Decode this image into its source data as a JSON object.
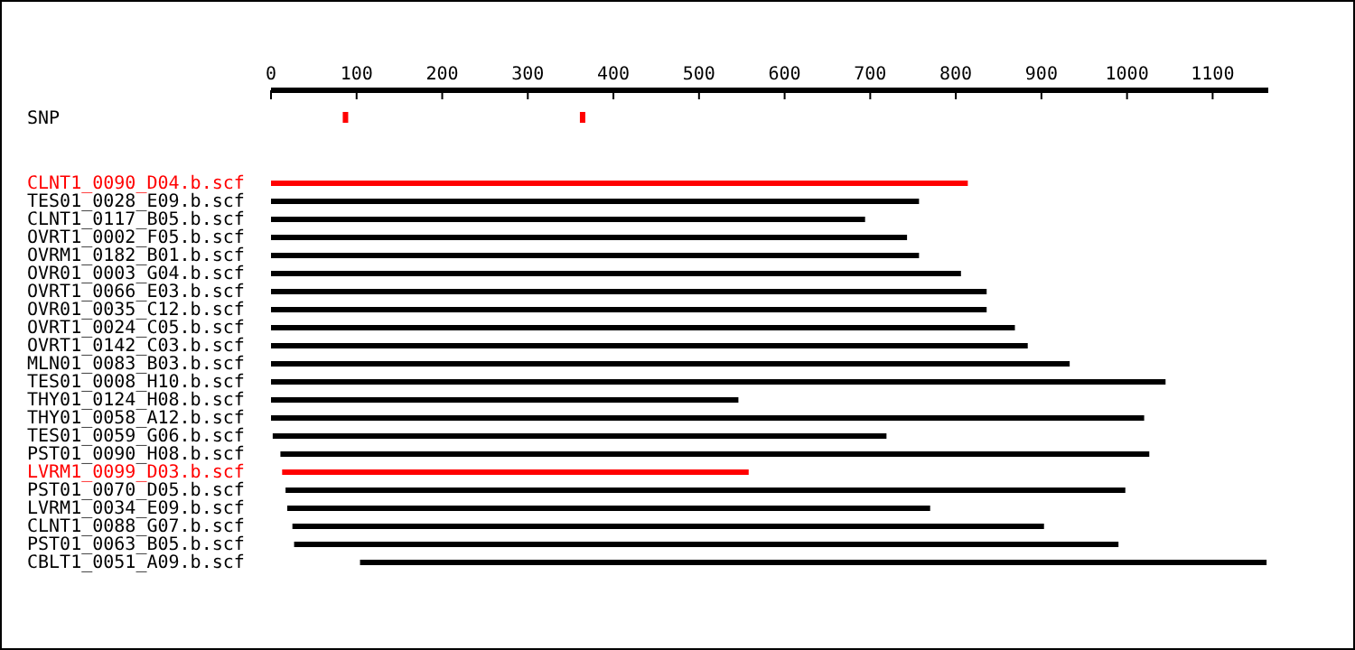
{
  "chart_data": {
    "type": "bar",
    "orientation": "horizontal",
    "categories": [
      "SNP",
      "CLNT1_0090_D04.b.scf",
      "TES01_0028_E09.b.scf",
      "CLNT1_0117_B05.b.scf",
      "OVRT1_0002_F05.b.scf",
      "OVRM1_0182_B01.b.scf",
      "OVR01_0003_G04.b.scf",
      "OVRT1_0066_E03.b.scf",
      "OVR01_0035_C12.b.scf",
      "OVRT1_0024_C05.b.scf",
      "OVRT1_0142_C03.b.scf",
      "MLN01_0083_B03.b.scf",
      "TES01_0008_H10.b.scf",
      "THY01_0124_H08.b.scf",
      "THY01_0058_A12.b.scf",
      "TES01_0059_G06.b.scf",
      "PST01_0090_H08.b.scf",
      "LVRM1_0099_D03.b.scf",
      "PST01_0070_D05.b.scf",
      "LVRM1_0034_E09.b.scf",
      "CLNT1_0088_G07.b.scf",
      "PST01_0063_B05.b.scf",
      "CBLT1_0051_A09.b.scf"
    ],
    "xlim": [
      0,
      1165
    ],
    "xticks": [
      0,
      100,
      200,
      300,
      400,
      500,
      600,
      700,
      800,
      900,
      1000,
      1100
    ],
    "series": [
      {
        "base": [
          null,
          0,
          0,
          0,
          0,
          0,
          0,
          0,
          0,
          0,
          0,
          0,
          0,
          0,
          0,
          2,
          11,
          13,
          17,
          19,
          25,
          27,
          104
        ],
        "values": [
          null,
          814,
          757,
          694,
          743,
          757,
          806,
          836,
          836,
          869,
          884,
          933,
          1045,
          546,
          1020,
          717,
          1015,
          545,
          981,
          751,
          878,
          963,
          1059
        ],
        "colors": [
          null,
          "#ff0000",
          "#000000",
          "#000000",
          "#000000",
          "#000000",
          "#000000",
          "#000000",
          "#000000",
          "#000000",
          "#000000",
          "#000000",
          "#000000",
          "#000000",
          "#000000",
          "#000000",
          "#000000",
          "#ff0000",
          "#000000",
          "#000000",
          "#000000",
          "#000000",
          "#000000"
        ]
      },
      {
        "type": "scatter",
        "marker": "square",
        "color": "#ff0000",
        "x": [
          "SNP",
          "SNP"
        ],
        "values": [
          87,
          364
        ]
      }
    ]
  }
}
